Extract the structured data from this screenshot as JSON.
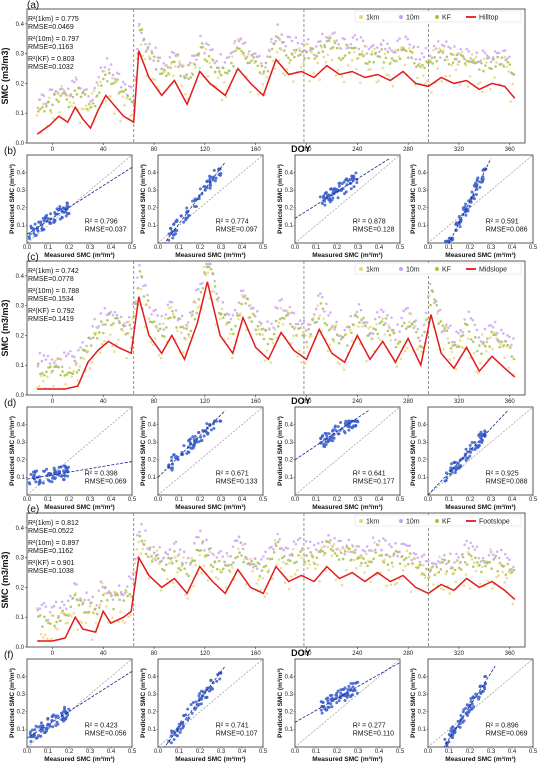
{
  "colors": {
    "hilltop_line": "#e31a1c",
    "s1km": "#e8d57a",
    "s10m": "#c9a0f0",
    "kf": "#a6c24a",
    "scatter": "#3a5fcd",
    "one_to_one": "#888888",
    "fit": "#1a237e"
  },
  "chart_data": [
    {
      "panel": "(a)",
      "type": "line",
      "site": "Hilltop",
      "ylabel": "SMC (m3/m3)",
      "xlabel": "DOY",
      "xlim": [
        -20,
        372
      ],
      "ylim": [
        0,
        0.45
      ],
      "xticks": [
        0,
        40,
        80,
        120,
        160,
        200,
        240,
        280,
        320,
        360
      ],
      "yticks": [
        0.0,
        0.1,
        0.2,
        0.3,
        0.4
      ],
      "vlines": [
        64,
        198,
        296
      ],
      "legend": [
        "1km",
        "10m",
        "KF",
        "Hilltop"
      ],
      "stats": [
        "R²(1km) = 0.775",
        "RMSE=0.0469",
        "R²(10m) = 0.797",
        "RMSE=0.1163",
        "R²(KF) = 0.803",
        "RMSE=0.1032"
      ],
      "measured": [
        [
          -12,
          0.03
        ],
        [
          -2,
          0.06
        ],
        [
          5,
          0.09
        ],
        [
          12,
          0.07
        ],
        [
          18,
          0.12
        ],
        [
          24,
          0.08
        ],
        [
          30,
          0.05
        ],
        [
          36,
          0.11
        ],
        [
          42,
          0.16
        ],
        [
          50,
          0.12
        ],
        [
          56,
          0.09
        ],
        [
          64,
          0.07
        ],
        [
          68,
          0.31
        ],
        [
          76,
          0.22
        ],
        [
          86,
          0.16
        ],
        [
          96,
          0.21
        ],
        [
          106,
          0.13
        ],
        [
          116,
          0.24
        ],
        [
          124,
          0.2
        ],
        [
          136,
          0.16
        ],
        [
          146,
          0.25
        ],
        [
          156,
          0.2
        ],
        [
          166,
          0.16
        ],
        [
          176,
          0.28
        ],
        [
          186,
          0.23
        ],
        [
          196,
          0.24
        ],
        [
          206,
          0.22
        ],
        [
          216,
          0.26
        ],
        [
          226,
          0.23
        ],
        [
          236,
          0.24
        ],
        [
          246,
          0.22
        ],
        [
          256,
          0.23
        ],
        [
          266,
          0.21
        ],
        [
          276,
          0.24
        ],
        [
          286,
          0.2
        ],
        [
          296,
          0.19
        ],
        [
          306,
          0.22
        ],
        [
          316,
          0.2
        ],
        [
          326,
          0.21
        ],
        [
          336,
          0.18
        ],
        [
          346,
          0.2
        ],
        [
          356,
          0.19
        ],
        [
          364,
          0.15
        ]
      ]
    },
    {
      "panel": "(b)",
      "type": "scatter",
      "site": "Hilltop",
      "xlabel": "Measured SMC (m³/m³)",
      "ylabel": "Predicted SMC (m³/m³)",
      "xlim": [
        0,
        0.5
      ],
      "ylim": [
        0,
        0.5
      ],
      "subplots": [
        {
          "r2": "R² = 0.796",
          "rmse": "RMSE=0.037",
          "fit": [
            [
              0.0,
              0.05
            ],
            [
              0.5,
              0.43
            ]
          ]
        },
        {
          "r2": "R² = 0.774",
          "rmse": "RMSE=0.097",
          "fit": [
            [
              0.0,
              -0.05
            ],
            [
              0.32,
              0.46
            ]
          ]
        },
        {
          "r2": "R² = 0.878",
          "rmse": "RMSE=0.128",
          "fit": [
            [
              0.0,
              0.14
            ],
            [
              0.45,
              0.48
            ]
          ]
        },
        {
          "r2": "R² = 0.591",
          "rmse": "RMSE=0.086",
          "fit": [
            [
              0.08,
              -0.05
            ],
            [
              0.3,
              0.48
            ]
          ]
        }
      ]
    },
    {
      "panel": "(c)",
      "type": "line",
      "site": "Midslope",
      "ylabel": "SMC (m3/m3)",
      "xlabel": "DOY",
      "xlim": [
        -20,
        372
      ],
      "ylim": [
        0,
        0.45
      ],
      "xticks": [
        0,
        40,
        80,
        120,
        160,
        200,
        240,
        280,
        320,
        360
      ],
      "yticks": [
        0.0,
        0.1,
        0.2,
        0.3,
        0.4
      ],
      "vlines": [
        64,
        198,
        296
      ],
      "legend": [
        "1km",
        "10m",
        "KF",
        "Midslope"
      ],
      "stats": [
        "R²(1km) = 0.742",
        "RMSE=0.0778",
        "R²(10m) = 0.788",
        "RMSE=0.1534",
        "R²(KF) = 0.792",
        "RMSE=0.1419"
      ],
      "measured": [
        [
          -12,
          0.02
        ],
        [
          0,
          0.02
        ],
        [
          10,
          0.02
        ],
        [
          20,
          0.03
        ],
        [
          28,
          0.11
        ],
        [
          36,
          0.15
        ],
        [
          44,
          0.18
        ],
        [
          52,
          0.16
        ],
        [
          62,
          0.14
        ],
        [
          68,
          0.33
        ],
        [
          76,
          0.2
        ],
        [
          86,
          0.14
        ],
        [
          94,
          0.2
        ],
        [
          104,
          0.12
        ],
        [
          114,
          0.24
        ],
        [
          122,
          0.38
        ],
        [
          132,
          0.2
        ],
        [
          142,
          0.14
        ],
        [
          150,
          0.26
        ],
        [
          160,
          0.16
        ],
        [
          170,
          0.12
        ],
        [
          180,
          0.21
        ],
        [
          190,
          0.15
        ],
        [
          200,
          0.12
        ],
        [
          210,
          0.22
        ],
        [
          220,
          0.14
        ],
        [
          230,
          0.11
        ],
        [
          240,
          0.2
        ],
        [
          250,
          0.12
        ],
        [
          260,
          0.18
        ],
        [
          270,
          0.11
        ],
        [
          280,
          0.19
        ],
        [
          290,
          0.1
        ],
        [
          298,
          0.27
        ],
        [
          306,
          0.14
        ],
        [
          316,
          0.09
        ],
        [
          326,
          0.16
        ],
        [
          336,
          0.08
        ],
        [
          346,
          0.13
        ],
        [
          356,
          0.09
        ],
        [
          364,
          0.06
        ]
      ]
    },
    {
      "panel": "(d)",
      "type": "scatter",
      "site": "Midslope",
      "xlabel": "Measured SMC (m³/m³)",
      "ylabel": "Predicted SMC (m³/m³)",
      "xlim": [
        0,
        0.5
      ],
      "ylim": [
        0,
        0.5
      ],
      "subplots": [
        {
          "r2": "R² = 0.398",
          "rmse": "RMSE=0.069",
          "fit": [
            [
              0.0,
              0.09
            ],
            [
              0.5,
              0.19
            ]
          ]
        },
        {
          "r2": "R² = 0.671",
          "rmse": "RMSE=0.133",
          "fit": [
            [
              0.0,
              0.1
            ],
            [
              0.32,
              0.48
            ]
          ]
        },
        {
          "r2": "R² = 0.641",
          "rmse": "RMSE=0.177",
          "fit": [
            [
              0.0,
              0.2
            ],
            [
              0.35,
              0.48
            ]
          ]
        },
        {
          "r2": "R² = 0.925",
          "rmse": "RMSE=0.088",
          "fit": [
            [
              0.0,
              0.0
            ],
            [
              0.38,
              0.48
            ]
          ]
        }
      ]
    },
    {
      "panel": "(e)",
      "type": "line",
      "site": "Footslope",
      "ylabel": "SMC (m3/m3)",
      "xlabel": "DOY",
      "xlim": [
        -20,
        372
      ],
      "ylim": [
        0,
        0.45
      ],
      "xticks": [
        0,
        40,
        80,
        120,
        160,
        200,
        240,
        280,
        320,
        360
      ],
      "yticks": [
        0.0,
        0.1,
        0.2,
        0.3,
        0.4
      ],
      "vlines": [
        64,
        198,
        296
      ],
      "legend": [
        "1km",
        "10m",
        "KF",
        "Footslope"
      ],
      "stats": [
        "R²(1km) = 0.812",
        "RMSE=0.0522",
        "R²(10m) = 0.897",
        "RMSE=0.1162",
        "R²(KF) = 0.901",
        "RMSE=0.1038"
      ],
      "measured": [
        [
          -12,
          0.02
        ],
        [
          0,
          0.02
        ],
        [
          10,
          0.03
        ],
        [
          18,
          0.1
        ],
        [
          24,
          0.06
        ],
        [
          34,
          0.05
        ],
        [
          40,
          0.12
        ],
        [
          46,
          0.08
        ],
        [
          56,
          0.1
        ],
        [
          62,
          0.12
        ],
        [
          68,
          0.3
        ],
        [
          76,
          0.24
        ],
        [
          86,
          0.2
        ],
        [
          96,
          0.23
        ],
        [
          106,
          0.18
        ],
        [
          116,
          0.27
        ],
        [
          126,
          0.22
        ],
        [
          136,
          0.18
        ],
        [
          146,
          0.26
        ],
        [
          156,
          0.2
        ],
        [
          166,
          0.18
        ],
        [
          176,
          0.27
        ],
        [
          186,
          0.22
        ],
        [
          196,
          0.24
        ],
        [
          206,
          0.22
        ],
        [
          216,
          0.27
        ],
        [
          226,
          0.23
        ],
        [
          236,
          0.25
        ],
        [
          246,
          0.22
        ],
        [
          256,
          0.25
        ],
        [
          266,
          0.22
        ],
        [
          276,
          0.24
        ],
        [
          286,
          0.2
        ],
        [
          296,
          0.18
        ],
        [
          306,
          0.21
        ],
        [
          316,
          0.19
        ],
        [
          326,
          0.23
        ],
        [
          336,
          0.2
        ],
        [
          346,
          0.22
        ],
        [
          356,
          0.19
        ],
        [
          364,
          0.16
        ]
      ]
    },
    {
      "panel": "(f)",
      "type": "scatter",
      "site": "Footslope",
      "xlabel": "Measured SMC (m³/m³)",
      "ylabel": "Predicted SMC (m³/m³)",
      "xlim": [
        0,
        0.5
      ],
      "ylim": [
        0,
        0.5
      ],
      "subplots": [
        {
          "r2": "R² = 0.423",
          "rmse": "RMSE=0.056",
          "fit": [
            [
              0.0,
              0.05
            ],
            [
              0.5,
              0.43
            ]
          ]
        },
        {
          "r2": "R² = 0.741",
          "rmse": "RMSE=0.107",
          "fit": [
            [
              0.0,
              -0.05
            ],
            [
              0.32,
              0.46
            ]
          ]
        },
        {
          "r2": "R² = 0.277",
          "rmse": "RMSE=0.110",
          "fit": [
            [
              0.0,
              0.14
            ],
            [
              0.5,
              0.48
            ]
          ]
        },
        {
          "r2": "R² = 0.896",
          "rmse": "RMSE=0.069",
          "fit": [
            [
              0.05,
              -0.05
            ],
            [
              0.32,
              0.46
            ]
          ]
        }
      ]
    }
  ]
}
